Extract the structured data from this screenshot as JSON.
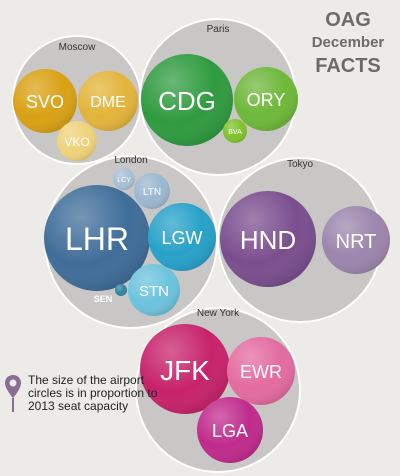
{
  "title": {
    "line1": "OAG",
    "line2": "December",
    "line3": "FACTS"
  },
  "note": "The size of the airport circles is in proportion to 2013 seat capacity",
  "icons": {
    "note_marker": "map-pin-icon"
  },
  "colors": {
    "background": "#ecebe8",
    "city_fill": "#c8c7c5",
    "city_stroke": "#ffffff"
  },
  "cities": [
    {
      "name": "Moscow",
      "airports": [
        {
          "code": "SVO",
          "color": "#d9a114"
        },
        {
          "code": "DME",
          "color": "#e2b43a"
        },
        {
          "code": "VKO",
          "color": "#efd27a"
        }
      ]
    },
    {
      "name": "Paris",
      "airports": [
        {
          "code": "CDG",
          "color": "#2f9b3f"
        },
        {
          "code": "ORY",
          "color": "#6eb83a"
        },
        {
          "code": "BVA",
          "color": "#7fc12b"
        }
      ]
    },
    {
      "name": "London",
      "airports": [
        {
          "code": "LHR",
          "color": "#3f6d99"
        },
        {
          "code": "LGW",
          "color": "#27a1c9"
        },
        {
          "code": "LTN",
          "color": "#9bb7cf"
        },
        {
          "code": "LCY",
          "color": "#a8bfd4"
        },
        {
          "code": "STN",
          "color": "#6cc3dc"
        },
        {
          "code": "SEN",
          "color": "#2e86a6"
        }
      ]
    },
    {
      "name": "Tokyo",
      "airports": [
        {
          "code": "HND",
          "color": "#7a4e8e"
        },
        {
          "code": "NRT",
          "color": "#9b86ad"
        }
      ]
    },
    {
      "name": "New York",
      "airports": [
        {
          "code": "JFK",
          "color": "#c7226a"
        },
        {
          "code": "EWR",
          "color": "#e36ba0"
        },
        {
          "code": "LGA",
          "color": "#c02b8c"
        }
      ]
    }
  ]
}
